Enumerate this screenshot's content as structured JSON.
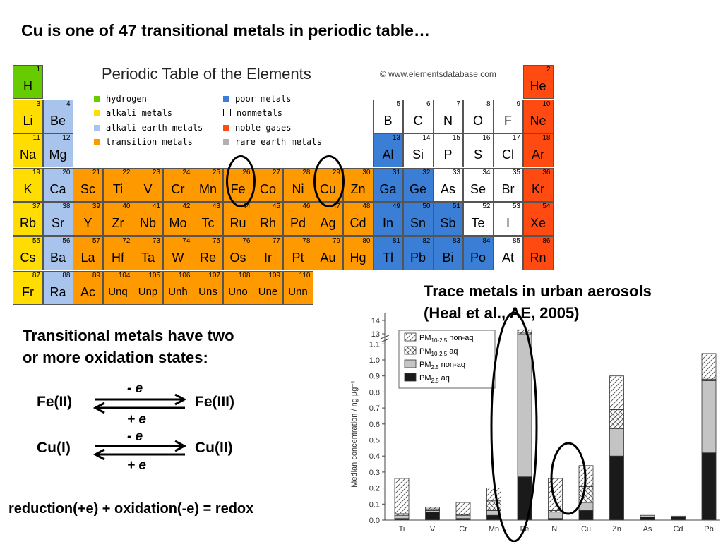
{
  "title": "Cu is one of 47 transitional metals in periodic table…",
  "periodic_table": {
    "heading": "Periodic Table of the Elements",
    "credit": "© www.elementsdatabase.com",
    "legend": [
      {
        "label": "hydrogen",
        "color": "#66cc00"
      },
      {
        "label": "alkali metals",
        "color": "#ffdd00"
      },
      {
        "label": "alkali earth metals",
        "color": "#a8c4ec"
      },
      {
        "label": "transition metals",
        "color": "#ff9900"
      },
      {
        "label": "poor metals",
        "color": "#3a7fd5"
      },
      {
        "label": "nonmetals",
        "color": "#ffffff"
      },
      {
        "label": "noble gases",
        "color": "#ff4a12"
      },
      {
        "label": "rare earth metals",
        "color": "#b0b0b0"
      }
    ],
    "elements": [
      {
        "sym": "H",
        "num": "1",
        "row": 1,
        "col": 1,
        "cat": "h"
      },
      {
        "sym": "He",
        "num": "2",
        "row": 1,
        "col": 18,
        "cat": "noble"
      },
      {
        "sym": "Li",
        "num": "3",
        "row": 2,
        "col": 1,
        "cat": "alkali"
      },
      {
        "sym": "Be",
        "num": "4",
        "row": 2,
        "col": 2,
        "cat": "earth"
      },
      {
        "sym": "B",
        "num": "5",
        "row": 2,
        "col": 13,
        "cat": "non"
      },
      {
        "sym": "C",
        "num": "6",
        "row": 2,
        "col": 14,
        "cat": "non"
      },
      {
        "sym": "N",
        "num": "7",
        "row": 2,
        "col": 15,
        "cat": "non"
      },
      {
        "sym": "O",
        "num": "8",
        "row": 2,
        "col": 16,
        "cat": "non"
      },
      {
        "sym": "F",
        "num": "9",
        "row": 2,
        "col": 17,
        "cat": "non"
      },
      {
        "sym": "Ne",
        "num": "10",
        "row": 2,
        "col": 18,
        "cat": "noble"
      },
      {
        "sym": "Na",
        "num": "11",
        "row": 3,
        "col": 1,
        "cat": "alkali"
      },
      {
        "sym": "Mg",
        "num": "12",
        "row": 3,
        "col": 2,
        "cat": "earth"
      },
      {
        "sym": "Al",
        "num": "13",
        "row": 3,
        "col": 13,
        "cat": "poor"
      },
      {
        "sym": "Si",
        "num": "14",
        "row": 3,
        "col": 14,
        "cat": "non"
      },
      {
        "sym": "P",
        "num": "15",
        "row": 3,
        "col": 15,
        "cat": "non"
      },
      {
        "sym": "S",
        "num": "16",
        "row": 3,
        "col": 16,
        "cat": "non"
      },
      {
        "sym": "Cl",
        "num": "17",
        "row": 3,
        "col": 17,
        "cat": "non"
      },
      {
        "sym": "Ar",
        "num": "18",
        "row": 3,
        "col": 18,
        "cat": "noble"
      },
      {
        "sym": "K",
        "num": "19",
        "row": 4,
        "col": 1,
        "cat": "alkali"
      },
      {
        "sym": "Ca",
        "num": "20",
        "row": 4,
        "col": 2,
        "cat": "earth"
      },
      {
        "sym": "Sc",
        "num": "21",
        "row": 4,
        "col": 3,
        "cat": "trans"
      },
      {
        "sym": "Ti",
        "num": "22",
        "row": 4,
        "col": 4,
        "cat": "trans"
      },
      {
        "sym": "V",
        "num": "23",
        "row": 4,
        "col": 5,
        "cat": "trans"
      },
      {
        "sym": "Cr",
        "num": "24",
        "row": 4,
        "col": 6,
        "cat": "trans"
      },
      {
        "sym": "Mn",
        "num": "25",
        "row": 4,
        "col": 7,
        "cat": "trans"
      },
      {
        "sym": "Fe",
        "num": "26",
        "row": 4,
        "col": 8,
        "cat": "trans"
      },
      {
        "sym": "Co",
        "num": "27",
        "row": 4,
        "col": 9,
        "cat": "trans"
      },
      {
        "sym": "Ni",
        "num": "28",
        "row": 4,
        "col": 10,
        "cat": "trans"
      },
      {
        "sym": "Cu",
        "num": "29",
        "row": 4,
        "col": 11,
        "cat": "trans"
      },
      {
        "sym": "Zn",
        "num": "30",
        "row": 4,
        "col": 12,
        "cat": "trans"
      },
      {
        "sym": "Ga",
        "num": "31",
        "row": 4,
        "col": 13,
        "cat": "poor"
      },
      {
        "sym": "Ge",
        "num": "32",
        "row": 4,
        "col": 14,
        "cat": "poor"
      },
      {
        "sym": "As",
        "num": "33",
        "row": 4,
        "col": 15,
        "cat": "non"
      },
      {
        "sym": "Se",
        "num": "34",
        "row": 4,
        "col": 16,
        "cat": "non"
      },
      {
        "sym": "Br",
        "num": "35",
        "row": 4,
        "col": 17,
        "cat": "non"
      },
      {
        "sym": "Kr",
        "num": "36",
        "row": 4,
        "col": 18,
        "cat": "noble"
      },
      {
        "sym": "Rb",
        "num": "37",
        "row": 5,
        "col": 1,
        "cat": "alkali"
      },
      {
        "sym": "Sr",
        "num": "38",
        "row": 5,
        "col": 2,
        "cat": "earth"
      },
      {
        "sym": "Y",
        "num": "39",
        "row": 5,
        "col": 3,
        "cat": "trans"
      },
      {
        "sym": "Zr",
        "num": "40",
        "row": 5,
        "col": 4,
        "cat": "trans"
      },
      {
        "sym": "Nb",
        "num": "41",
        "row": 5,
        "col": 5,
        "cat": "trans"
      },
      {
        "sym": "Mo",
        "num": "42",
        "row": 5,
        "col": 6,
        "cat": "trans"
      },
      {
        "sym": "Tc",
        "num": "43",
        "row": 5,
        "col": 7,
        "cat": "trans"
      },
      {
        "sym": "Ru",
        "num": "44",
        "row": 5,
        "col": 8,
        "cat": "trans"
      },
      {
        "sym": "Rh",
        "num": "45",
        "row": 5,
        "col": 9,
        "cat": "trans"
      },
      {
        "sym": "Pd",
        "num": "46",
        "row": 5,
        "col": 10,
        "cat": "trans"
      },
      {
        "sym": "Ag",
        "num": "47",
        "row": 5,
        "col": 11,
        "cat": "trans"
      },
      {
        "sym": "Cd",
        "num": "48",
        "row": 5,
        "col": 12,
        "cat": "trans"
      },
      {
        "sym": "In",
        "num": "49",
        "row": 5,
        "col": 13,
        "cat": "poor"
      },
      {
        "sym": "Sn",
        "num": "50",
        "row": 5,
        "col": 14,
        "cat": "poor"
      },
      {
        "sym": "Sb",
        "num": "51",
        "row": 5,
        "col": 15,
        "cat": "poor"
      },
      {
        "sym": "Te",
        "num": "52",
        "row": 5,
        "col": 16,
        "cat": "non"
      },
      {
        "sym": "I",
        "num": "53",
        "row": 5,
        "col": 17,
        "cat": "non"
      },
      {
        "sym": "Xe",
        "num": "54",
        "row": 5,
        "col": 18,
        "cat": "noble"
      },
      {
        "sym": "Cs",
        "num": "55",
        "row": 6,
        "col": 1,
        "cat": "alkali"
      },
      {
        "sym": "Ba",
        "num": "56",
        "row": 6,
        "col": 2,
        "cat": "earth"
      },
      {
        "sym": "La",
        "num": "57",
        "row": 6,
        "col": 3,
        "cat": "trans"
      },
      {
        "sym": "Hf",
        "num": "72",
        "row": 6,
        "col": 4,
        "cat": "trans"
      },
      {
        "sym": "Ta",
        "num": "73",
        "row": 6,
        "col": 5,
        "cat": "trans"
      },
      {
        "sym": "W",
        "num": "74",
        "row": 6,
        "col": 6,
        "cat": "trans"
      },
      {
        "sym": "Re",
        "num": "75",
        "row": 6,
        "col": 7,
        "cat": "trans"
      },
      {
        "sym": "Os",
        "num": "76",
        "row": 6,
        "col": 8,
        "cat": "trans"
      },
      {
        "sym": "Ir",
        "num": "77",
        "row": 6,
        "col": 9,
        "cat": "trans"
      },
      {
        "sym": "Pt",
        "num": "78",
        "row": 6,
        "col": 10,
        "cat": "trans"
      },
      {
        "sym": "Au",
        "num": "79",
        "row": 6,
        "col": 11,
        "cat": "trans"
      },
      {
        "sym": "Hg",
        "num": "80",
        "row": 6,
        "col": 12,
        "cat": "trans"
      },
      {
        "sym": "Tl",
        "num": "81",
        "row": 6,
        "col": 13,
        "cat": "poor"
      },
      {
        "sym": "Pb",
        "num": "82",
        "row": 6,
        "col": 14,
        "cat": "poor"
      },
      {
        "sym": "Bi",
        "num": "83",
        "row": 6,
        "col": 15,
        "cat": "poor"
      },
      {
        "sym": "Po",
        "num": "84",
        "row": 6,
        "col": 16,
        "cat": "poor"
      },
      {
        "sym": "At",
        "num": "85",
        "row": 6,
        "col": 17,
        "cat": "non"
      },
      {
        "sym": "Rn",
        "num": "86",
        "row": 6,
        "col": 18,
        "cat": "noble"
      },
      {
        "sym": "Fr",
        "num": "87",
        "row": 7,
        "col": 1,
        "cat": "alkali"
      },
      {
        "sym": "Ra",
        "num": "88",
        "row": 7,
        "col": 2,
        "cat": "earth"
      },
      {
        "sym": "Ac",
        "num": "89",
        "row": 7,
        "col": 3,
        "cat": "trans"
      },
      {
        "sym": "Unq",
        "num": "104",
        "row": 7,
        "col": 4,
        "cat": "trans"
      },
      {
        "sym": "Unp",
        "num": "105",
        "row": 7,
        "col": 5,
        "cat": "trans"
      },
      {
        "sym": "Unh",
        "num": "106",
        "row": 7,
        "col": 6,
        "cat": "trans"
      },
      {
        "sym": "Uns",
        "num": "107",
        "row": 7,
        "col": 7,
        "cat": "trans"
      },
      {
        "sym": "Uno",
        "num": "108",
        "row": 7,
        "col": 8,
        "cat": "trans"
      },
      {
        "sym": "Une",
        "num": "109",
        "row": 7,
        "col": 9,
        "cat": "trans"
      },
      {
        "sym": "Unn",
        "num": "110",
        "row": 7,
        "col": 10,
        "cat": "trans"
      }
    ],
    "highlighted": [
      "Fe",
      "Cu"
    ]
  },
  "oxidation": {
    "heading_line1": "Transitional metals have two",
    "heading_line2": "or more oxidation states:",
    "fe_left": "Fe(II)",
    "fe_right": "Fe(III)",
    "cu_left": "Cu(I)",
    "cu_right": "Cu(II)",
    "minus_e": "- e",
    "plus_e": "+ e",
    "summary": "reduction(+e) + oxidation(-e) = redox"
  },
  "chart_caption": {
    "line1": "Trace metals in urban aerosols",
    "line2": "(Heal et al., AE, 2005)"
  },
  "chart_data": {
    "type": "bar",
    "stacked": true,
    "ylabel": "Median concentration / ng µg⁻¹",
    "y_ticks": [
      "0.0",
      "0.1",
      "0.2",
      "0.3",
      "0.4",
      "0.5",
      "0.6",
      "0.7",
      "0.8",
      "0.9",
      "1.0",
      "1.1",
      "13",
      "14"
    ],
    "y_break": "between 1.1 and 13",
    "categories": [
      "Ti",
      "V",
      "Cr",
      "Mn",
      "Fe",
      "Ni",
      "Cu",
      "Zn",
      "As",
      "Cd",
      "Pb"
    ],
    "series": [
      {
        "name": "PM2.5 aq",
        "pattern": "solid-black",
        "values": [
          0.01,
          0.05,
          0.01,
          0.03,
          0.27,
          0.01,
          0.06,
          0.4,
          0.02,
          0.02,
          0.42
        ]
      },
      {
        "name": "PM2.5 non-aq",
        "pattern": "gray",
        "values": [
          0.02,
          0.01,
          0.02,
          0.03,
          12.73,
          0.04,
          0.05,
          0.17,
          0.01,
          0.005,
          0.45
        ]
      },
      {
        "name": "PM10-2.5 aq",
        "pattern": "crosshatch",
        "values": [
          0.01,
          0.01,
          0.005,
          0.06,
          0.1,
          0.01,
          0.1,
          0.12,
          0.0,
          0.0,
          0.01
        ]
      },
      {
        "name": "PM10-2.5 non-aq",
        "pattern": "diagonal",
        "values": [
          0.22,
          0.01,
          0.075,
          0.08,
          0.2,
          0.2,
          0.13,
          0.21,
          0.0,
          0.0,
          0.16
        ]
      }
    ],
    "highlighted": [
      "Fe",
      "Cu"
    ],
    "legend": [
      {
        "base": "PM",
        "sub": "10-2.5",
        "tail": " non-aq",
        "pattern": "diagonal"
      },
      {
        "base": "PM",
        "sub": "10-2.5",
        "tail": " aq",
        "pattern": "crosshatch"
      },
      {
        "base": "PM",
        "sub": "2.5",
        "tail": " non-aq",
        "pattern": "gray"
      },
      {
        "base": "PM",
        "sub": "2.5",
        "tail": " aq",
        "pattern": "solid-black"
      }
    ]
  }
}
